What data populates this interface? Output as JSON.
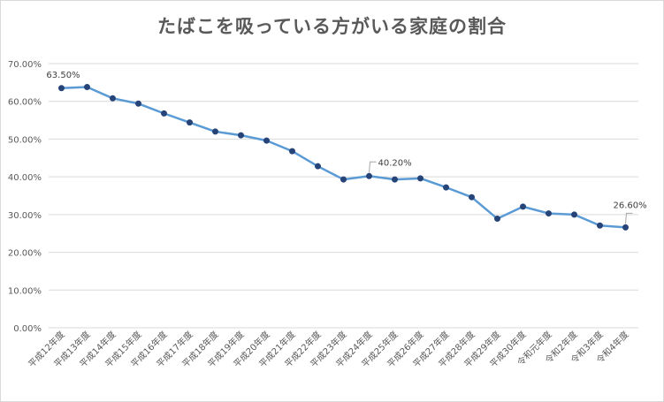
{
  "chart_data": {
    "type": "line",
    "title": "たばこを吸っている方がいる家庭の割合",
    "xlabel": "",
    "ylabel": "",
    "ylim": [
      0,
      70
    ],
    "y_ticks": [
      0,
      10,
      20,
      30,
      40,
      50,
      60,
      70
    ],
    "y_tick_labels": [
      "0.00%",
      "10.00%",
      "20.00%",
      "30.00%",
      "40.00%",
      "50.00%",
      "60.00%",
      "70.00%"
    ],
    "grid": true,
    "categories": [
      "平成12年度",
      "平成13年度",
      "平成14年度",
      "平成15年度",
      "平成16年度",
      "平成17年度",
      "平成18年度",
      "平成19年度",
      "平成20年度",
      "平成21年度",
      "平成22年度",
      "平成23年度",
      "平成24年度",
      "平成25年度",
      "平成26年度",
      "平成27年度",
      "平成28年度",
      "平成29年度",
      "平成30年度",
      "令和元年度",
      "令和2年度",
      "令和3年度",
      "令和4年度"
    ],
    "series": [
      {
        "name": "たばこを吸っている方がいる家庭の割合",
        "color": "#5b9bd5",
        "marker_color": "#264478",
        "values": [
          63.5,
          63.8,
          60.8,
          59.4,
          56.8,
          54.4,
          52.0,
          51.0,
          49.6,
          46.8,
          42.8,
          39.3,
          40.2,
          39.3,
          39.6,
          37.2,
          34.6,
          28.9,
          32.1,
          30.3,
          30.0,
          27.1,
          26.6
        ]
      }
    ],
    "data_labels": [
      {
        "index": 0,
        "text": "63.50%"
      },
      {
        "index": 12,
        "text": "40.20%"
      },
      {
        "index": 22,
        "text": "26.60%"
      }
    ]
  }
}
